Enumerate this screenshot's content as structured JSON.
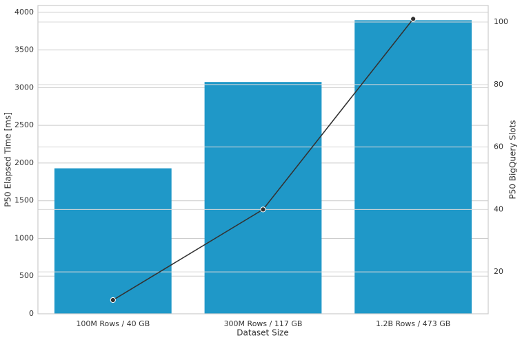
{
  "chart_data": {
    "type": "bar",
    "xlabel": "Dataset Size",
    "ylabel": "P50 Elapsed Time [ms]",
    "y2label": "P50 BigQuery Slots",
    "categories": [
      "100M Rows / 40 GB",
      "300M Rows / 117 GB",
      "1.2B Rows / 473 GB"
    ],
    "series": [
      {
        "type": "bar",
        "color": "#1f98c8",
        "values": [
          1930,
          3075,
          3895
        ]
      },
      {
        "type": "line",
        "color": "#333333",
        "axis": "y2",
        "values": [
          11,
          40,
          101
        ]
      }
    ],
    "ylim": [
      0,
      4090
    ],
    "yticks": [
      0,
      500,
      1000,
      1500,
      2000,
      2500,
      3000,
      3500,
      4000
    ],
    "y2lim": [
      6.6,
      105.3
    ],
    "y2ticks": [
      20,
      40,
      60,
      80,
      100
    ],
    "grid": true
  }
}
